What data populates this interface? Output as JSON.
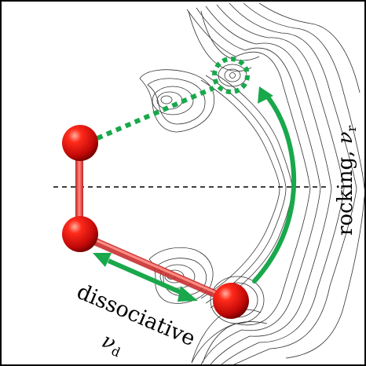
{
  "labels": {
    "rocking": "rocking, ",
    "rocking_symbol": "ν",
    "rocking_subscript": "r",
    "dissociative": "dissociative",
    "dissociative_symbol": "ν",
    "dissociative_subscript": "d"
  },
  "colors": {
    "atom": "#d81010",
    "bond": "#e05050",
    "arrow": "#19a84c",
    "contour": "#333333",
    "axis_line": "#000000"
  }
}
